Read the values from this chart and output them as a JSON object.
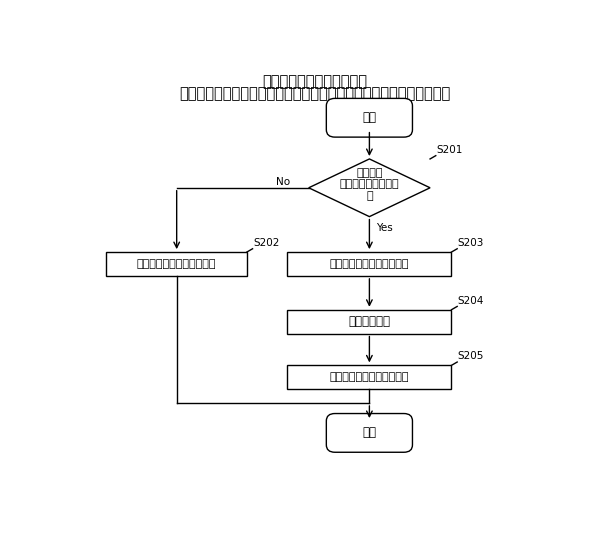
{
  "title_line1": "第１の実施の形態における",
  "title_line2": "ストレス推定処理の処理手順の一例を説明するためのフローチャート",
  "bg_color": "#ffffff",
  "text_start": "開始",
  "text_end": "終了",
  "text_diamond": "意図的な\n反復操作が発生した\n？",
  "text_s202": "ストレス状態でないと推定",
  "text_s203": "ストレス状態であると推定",
  "text_s204": "解消策を取得",
  "text_s205": "解消策に応じた制御を実行",
  "label_s201": "S201",
  "label_s202": "S202",
  "label_s203": "S203",
  "label_s204": "S204",
  "label_s205": "S205",
  "text_no": "No",
  "text_yes": "Yes",
  "font_size_title": 10.5,
  "font_size_node": 8.5,
  "font_size_label": 7.5,
  "box_color": "#ffffff",
  "border_color": "#000000",
  "line_color": "#000000"
}
